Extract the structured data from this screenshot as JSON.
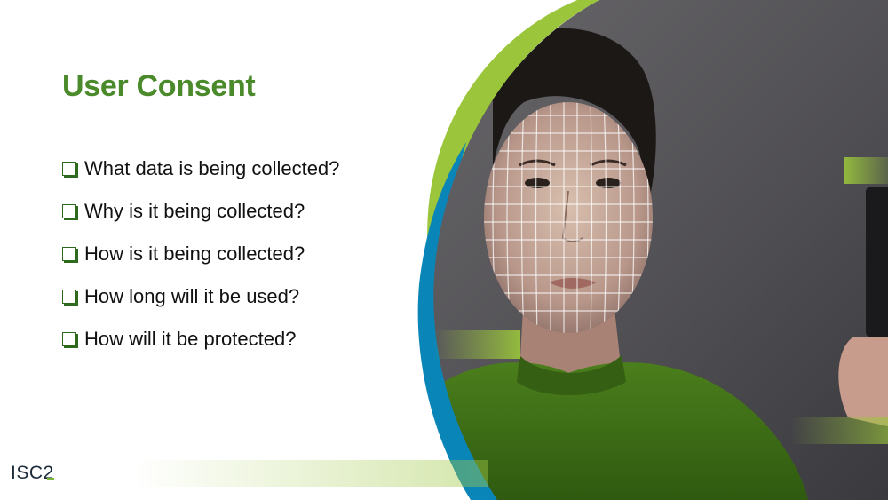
{
  "slide": {
    "title": "User Consent",
    "bullets": [
      "What data is being collected?",
      "Why is it being collected?",
      "How is it being collected?",
      "How long will it be used?",
      "How will it be protected?"
    ]
  },
  "logo": {
    "text": "ISC2"
  },
  "colors": {
    "title_green": "#4a8a2a",
    "accent_lime": "#9bc63b",
    "accent_blue": "#0a85b8",
    "sweater_green": "#3f6f18",
    "photo_background": "#525155"
  },
  "icons": [
    "checkbox-icon",
    "face-scan-grid-icon",
    "phone-icon"
  ]
}
